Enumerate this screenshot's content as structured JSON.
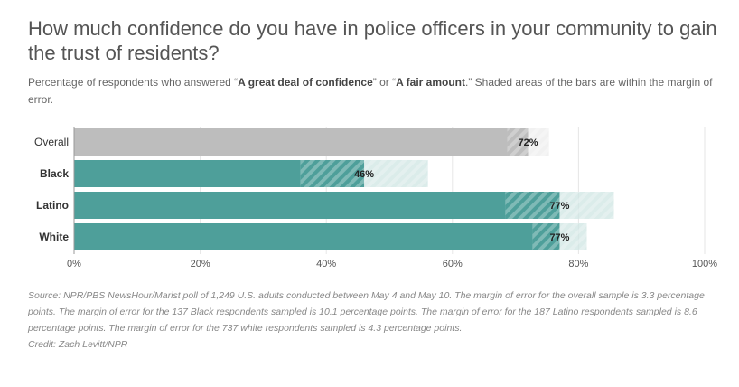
{
  "header": {
    "title": "How much confidence do you have in police officers in your community to gain the trust of residents?",
    "subtitle_pre": "Percentage of respondents who answered “",
    "subtitle_bold1": "A great deal of confidence",
    "subtitle_mid": "” or “",
    "subtitle_bold2": "A fair amount",
    "subtitle_post": ".” Shaded areas of the bars are within the margin of error."
  },
  "chart_data": {
    "type": "bar",
    "orientation": "horizontal",
    "categories": [
      "Overall",
      "Black",
      "Latino",
      "White"
    ],
    "values": [
      72,
      46,
      77,
      77
    ],
    "value_labels": [
      "72%",
      "46%",
      "77%",
      "77%"
    ],
    "margin_of_error": [
      3.3,
      10.1,
      8.6,
      4.3
    ],
    "colors": [
      "#bdbdbd",
      "#4e9f9a",
      "#4e9f9a",
      "#4e9f9a"
    ],
    "xlim": [
      0,
      100
    ],
    "xticks": [
      "0%",
      "20%",
      "40%",
      "60%",
      "80%",
      "100%"
    ],
    "grid": true
  },
  "footer": {
    "source": "Source: NPR/PBS NewsHour/Marist poll of 1,249 U.S. adults conducted between May 4 and May 10. The margin of error for the overall sample is 3.3 percentage points. The margin of error for the 137 Black respondents sampled is 10.1 percentage points. The margin of error for the 187 Latino respondents sampled is 8.6 percentage points. The margin of error for the 737 white respondents sampled is 4.3 percentage points.",
    "credit": "Credit: Zach Levitt/NPR"
  }
}
